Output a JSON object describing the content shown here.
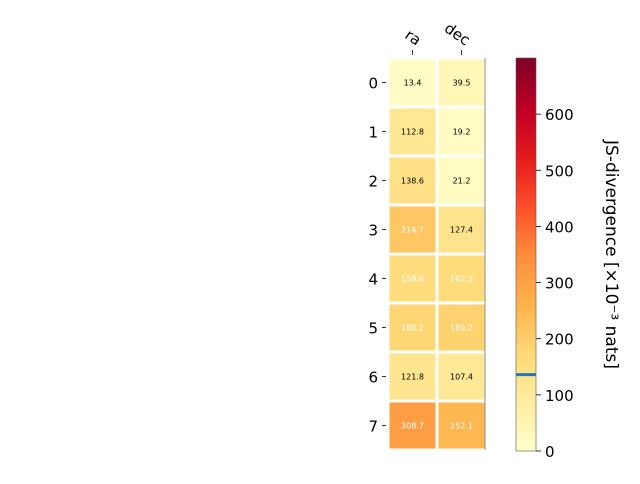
{
  "chart_data": {
    "type": "heatmap",
    "columns": [
      "ra",
      "dec"
    ],
    "rows": [
      "0",
      "1",
      "2",
      "3",
      "4",
      "5",
      "6",
      "7"
    ],
    "values": [
      [
        13.4,
        39.5
      ],
      [
        112.8,
        19.2
      ],
      [
        138.6,
        21.2
      ],
      [
        214.7,
        127.4
      ],
      [
        158.6,
        162.3
      ],
      [
        180.2,
        189.2
      ],
      [
        121.8,
        107.4
      ],
      [
        308.7,
        252.1
      ]
    ],
    "value_labels": [
      [
        "13.4",
        "39.5"
      ],
      [
        "112.8",
        "19.2"
      ],
      [
        "138.6",
        "21.2"
      ],
      [
        "214.7",
        "127.4"
      ],
      [
        "158.6",
        "162.3"
      ],
      [
        "180.2",
        "189.2"
      ],
      [
        "121.8",
        "107.4"
      ],
      [
        "308.7",
        "252.1"
      ]
    ],
    "colorbar": {
      "label": "JS-divergence [×10⁻³ nats]",
      "range": [
        0,
        700
      ],
      "ticks": [
        0,
        100,
        200,
        300,
        400,
        500,
        600
      ],
      "tick_labels": [
        "0",
        "100",
        "200",
        "300",
        "400",
        "500",
        "600"
      ],
      "marker_value": 136,
      "marker_color": "#1f77b4",
      "colormap": "YlOrRd"
    },
    "grid": false
  }
}
